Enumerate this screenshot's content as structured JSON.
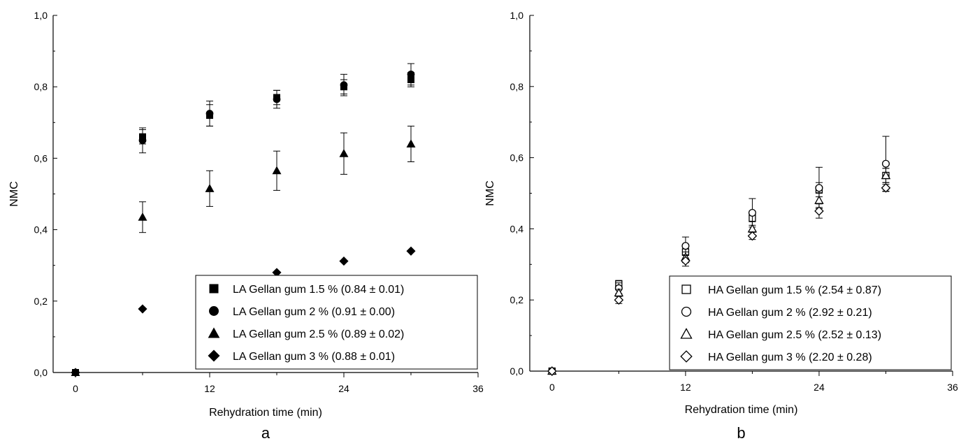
{
  "chart_data": [
    {
      "type": "scatter",
      "panel_label": "a",
      "xlabel": "Rehydration time (min)",
      "ylabel": "NMC",
      "xlim": [
        -2,
        36
      ],
      "ylim": [
        0,
        1.0
      ],
      "xticks": [
        0,
        12,
        24,
        36
      ],
      "yticks": [
        0.0,
        0.2,
        0.4,
        0.6,
        0.8,
        1.0
      ],
      "xtick_labels": [
        "0",
        "12",
        "24",
        "36"
      ],
      "ytick_labels": [
        "0,0",
        "0,2",
        "0,4",
        "0,6",
        "0,8",
        "1,0"
      ],
      "grid": false,
      "legend_position": "bottom-right",
      "series": [
        {
          "name": "LA Gellan gum 1.5 % (0.84 ± 0.01)",
          "marker": "square",
          "fill": "filled",
          "x": [
            0,
            6,
            12,
            18,
            24,
            30
          ],
          "y": [
            0,
            0.66,
            0.72,
            0.77,
            0.8,
            0.82
          ],
          "err": [
            0,
            0.02,
            0.03,
            0.02,
            0.02,
            0.02
          ]
        },
        {
          "name": "LA Gellan gum 2 % (0.91 ± 0.00)",
          "marker": "circle",
          "fill": "filled",
          "x": [
            0,
            6,
            12,
            18,
            24,
            30
          ],
          "y": [
            0,
            0.65,
            0.725,
            0.765,
            0.805,
            0.835
          ],
          "err": [
            0,
            0.035,
            0.035,
            0.025,
            0.03,
            0.03
          ]
        },
        {
          "name": "LA Gellan gum 2.5 % (0.89 ± 0.02)",
          "marker": "triangle",
          "fill": "filled",
          "x": [
            0,
            6,
            12,
            18,
            24,
            30
          ],
          "y": [
            0,
            0.435,
            0.515,
            0.565,
            0.613,
            0.64
          ],
          "err": [
            0,
            0.043,
            0.05,
            0.055,
            0.058,
            0.05
          ]
        },
        {
          "name": "LA Gellan gum 3 % (0.88 ± 0.01)",
          "marker": "diamond",
          "fill": "filled",
          "x": [
            0,
            6,
            12,
            18,
            24,
            30
          ],
          "y": [
            0,
            0.178,
            0.25,
            0.28,
            0.312,
            0.34
          ],
          "err": [
            0,
            0,
            0,
            0,
            0,
            0
          ]
        }
      ]
    },
    {
      "type": "scatter",
      "panel_label": "b",
      "xlabel": "Rehydration time (min)",
      "ylabel": "NMC",
      "xlim": [
        -2,
        36
      ],
      "ylim": [
        0,
        1.0
      ],
      "xticks": [
        0,
        12,
        24,
        36
      ],
      "yticks": [
        0.0,
        0.2,
        0.4,
        0.6,
        0.8,
        1.0
      ],
      "xtick_labels": [
        "0",
        "12",
        "24",
        "36"
      ],
      "ytick_labels": [
        "0,0",
        "0,2",
        "0,4",
        "0,6",
        "0,8",
        "1,0"
      ],
      "grid": false,
      "legend_position": "bottom-right",
      "series": [
        {
          "name": "HA Gellan gum 1.5 % (2.54 ± 0.87)",
          "marker": "square",
          "fill": "open",
          "x": [
            0,
            6,
            12,
            18,
            24,
            30
          ],
          "y": [
            0,
            0.245,
            0.335,
            0.43,
            0.51,
            0.55
          ],
          "err": [
            0,
            0.01,
            0.02,
            0.02,
            0.02,
            0.02
          ]
        },
        {
          "name": "HA Gellan gum 2 % (2.92 ± 0.21)",
          "marker": "circle",
          "fill": "open",
          "x": [
            0,
            6,
            12,
            18,
            24,
            30
          ],
          "y": [
            0,
            0.233,
            0.352,
            0.445,
            0.515,
            0.583
          ],
          "err": [
            0,
            0.015,
            0.025,
            0.04,
            0.058,
            0.077
          ]
        },
        {
          "name": "HA Gellan gum 2.5 % (2.52 ± 0.13)",
          "marker": "triangle",
          "fill": "open",
          "x": [
            0,
            6,
            12,
            18,
            24,
            30
          ],
          "y": [
            0,
            0.22,
            0.32,
            0.4,
            0.48,
            0.55
          ],
          "err": [
            0,
            0.01,
            0.015,
            0.02,
            0.02,
            0.02
          ]
        },
        {
          "name": "HA Gellan gum 3 % (2.20 ± 0.28)",
          "marker": "diamond",
          "fill": "open",
          "x": [
            0,
            6,
            12,
            18,
            24,
            30
          ],
          "y": [
            0,
            0.2,
            0.31,
            0.38,
            0.45,
            0.515
          ],
          "err": [
            0,
            0.01,
            0.015,
            0.01,
            0.02,
            0.01
          ]
        }
      ]
    }
  ]
}
